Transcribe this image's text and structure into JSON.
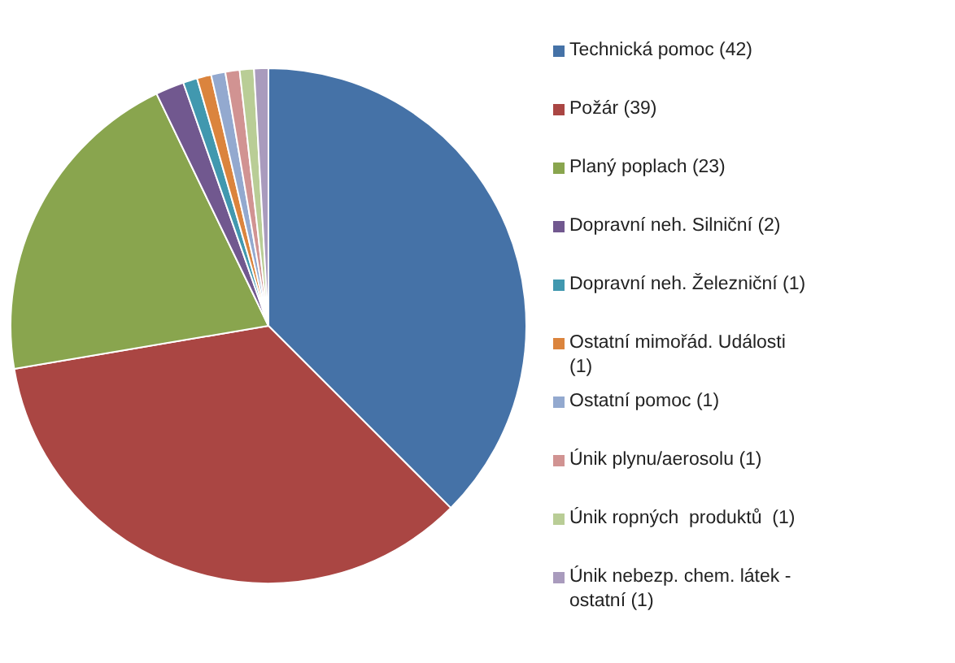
{
  "chart_data": {
    "type": "pie",
    "legend": "right",
    "categories": [
      "Technická pomoc (42)",
      "Požár (39)",
      "Planý poplach (23)",
      "Dopravní neh. Silniční (2)",
      "Dopravní neh. Železniční (1)",
      "Ostatní mimořád. Události (1)",
      "Ostatní pomoc (1)",
      "Únik plynu/aerosolu (1)",
      "Únik ropných  produktů  (1)",
      "Únik nebezp. chem. látek - ostatní (1)"
    ],
    "values": [
      42,
      39,
      23,
      2,
      1,
      1,
      1,
      1,
      1,
      1
    ],
    "colors": [
      "#4572a7",
      "#aa4643",
      "#89a54e",
      "#71588f",
      "#4198af",
      "#db843d",
      "#93a9cf",
      "#d19392",
      "#b9cd96",
      "#a99bbd"
    ]
  }
}
